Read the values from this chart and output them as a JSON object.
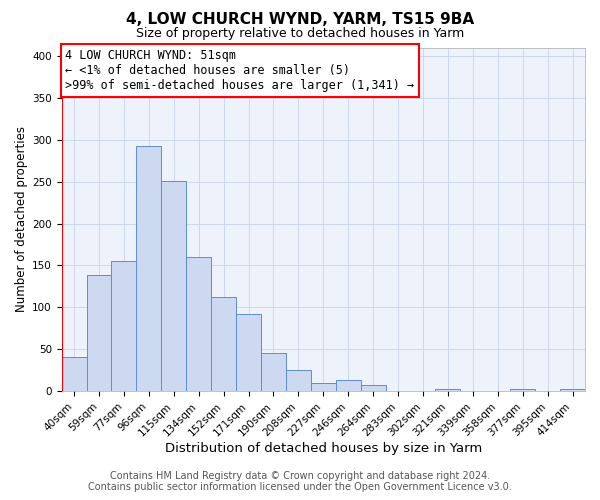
{
  "title": "4, LOW CHURCH WYND, YARM, TS15 9BA",
  "subtitle": "Size of property relative to detached houses in Yarm",
  "xlabel": "Distribution of detached houses by size in Yarm",
  "ylabel": "Number of detached properties",
  "bar_labels": [
    "40sqm",
    "59sqm",
    "77sqm",
    "96sqm",
    "115sqm",
    "134sqm",
    "152sqm",
    "171sqm",
    "190sqm",
    "208sqm",
    "227sqm",
    "246sqm",
    "264sqm",
    "283sqm",
    "302sqm",
    "321sqm",
    "339sqm",
    "358sqm",
    "377sqm",
    "395sqm",
    "414sqm"
  ],
  "bar_values": [
    41,
    139,
    155,
    292,
    251,
    160,
    113,
    92,
    46,
    25,
    10,
    13,
    8,
    0,
    0,
    3,
    0,
    0,
    3,
    0,
    3
  ],
  "bar_color": "#ccd9f0",
  "bar_edge_color": "#5b8dd9",
  "annotation_line_color": "red",
  "annotation_box_text_line1": "4 LOW CHURCH WYND: 51sqm",
  "annotation_box_text_line2": "← <1% of detached houses are smaller (5)",
  "annotation_box_text_line3": ">99% of semi-detached houses are larger (1,341) →",
  "red_line_x": -0.5,
  "ylim": [
    0,
    410
  ],
  "yticks": [
    0,
    50,
    100,
    150,
    200,
    250,
    300,
    350,
    400
  ],
  "grid_color": "#c8d4e8",
  "background_color": "#edf2fb",
  "footer_line1": "Contains HM Land Registry data © Crown copyright and database right 2024.",
  "footer_line2": "Contains public sector information licensed under the Open Government Licence v3.0.",
  "title_fontsize": 11,
  "subtitle_fontsize": 9,
  "xlabel_fontsize": 9.5,
  "ylabel_fontsize": 8.5,
  "tick_fontsize": 7.5,
  "annotation_fontsize": 8.5,
  "footer_fontsize": 7
}
